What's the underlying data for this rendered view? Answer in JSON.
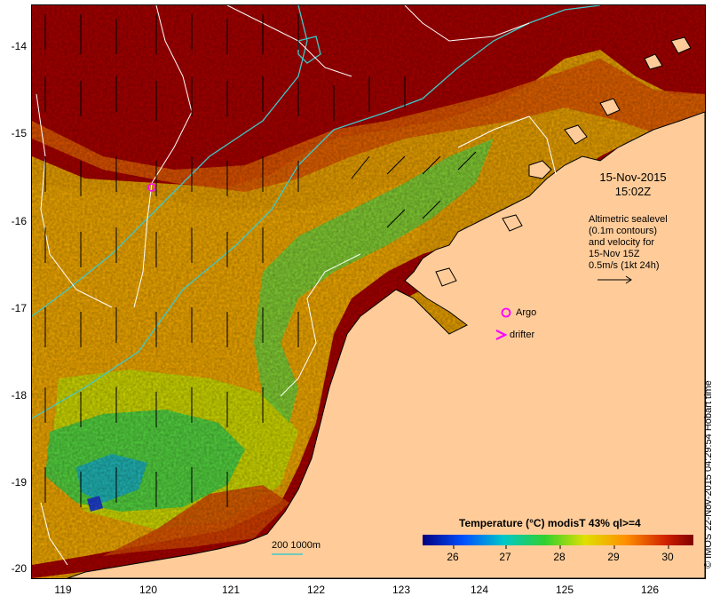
{
  "map": {
    "date": "15-Nov-2015",
    "time": "15:02Z",
    "legend_lines": [
      "Altimetric sealevel",
      "(0.1m contours)",
      "and velocity for",
      "15-Nov 15Z",
      "0.5m/s (1kt 24h)"
    ],
    "argo_label": "Argo",
    "drifter_label": "drifter",
    "drifter_symbol": ">",
    "colorbar_title": "Temperature (°C) modisT 43% ql>=4",
    "colorbar_ticks": [
      "26",
      "27",
      "28",
      "29",
      "30"
    ],
    "scale_label": "200  1000m",
    "credit": "© IMOS 22-Nov-2015 04:29:54 Hobart time",
    "y_ticks": [
      "-14",
      "-15",
      "-16",
      "-17",
      "-18",
      "-19",
      "-20"
    ],
    "x_ticks": [
      "119",
      "120",
      "121",
      "122",
      "123",
      "124",
      "125",
      "126"
    ],
    "colors": {
      "land": "#ffcc99",
      "hot": "#a80000",
      "warm": "#e65a00",
      "mid": "#f5b800",
      "cool": "#b8e000",
      "cold": "#3cd23c",
      "argo": "#ff00ff",
      "contour_200": "#40c8c8",
      "sealevel_contour": "#ffffff"
    }
  }
}
